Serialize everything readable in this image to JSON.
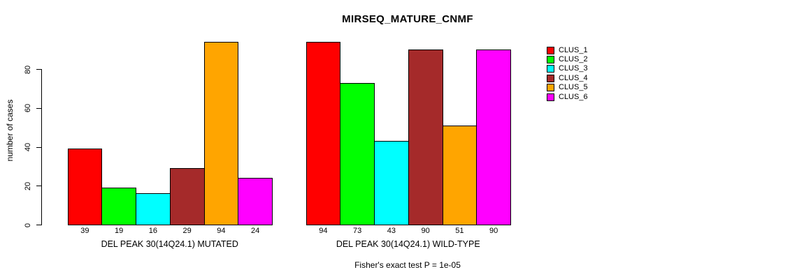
{
  "chart_data": {
    "type": "bar",
    "title": "MIRSEQ_MATURE_CNMF",
    "ylabel": "number of cases",
    "xlabel": "",
    "caption": "Fisher's exact test P = 1e-05",
    "ylim": [
      0,
      94
    ],
    "yticks": [
      0,
      20,
      40,
      60,
      80
    ],
    "grid": false,
    "legend_position": "right",
    "series_labels": [
      "CLUS_1",
      "CLUS_2",
      "CLUS_3",
      "CLUS_4",
      "CLUS_5",
      "CLUS_6"
    ],
    "series_colors": [
      "#FF0000",
      "#00FF00",
      "#00FFFF",
      "#A52A2A",
      "#FFA500",
      "#FF00FF"
    ],
    "bar_border_color": "#000000",
    "background_color": "#FFFFFF",
    "groups": [
      {
        "label": "DEL PEAK 30(14Q24.1) MUTATED",
        "values": [
          39,
          19,
          16,
          29,
          94,
          24
        ]
      },
      {
        "label": "DEL PEAK 30(14Q24.1) WILD-TYPE",
        "values": [
          94,
          73,
          43,
          90,
          51,
          90
        ]
      }
    ]
  }
}
